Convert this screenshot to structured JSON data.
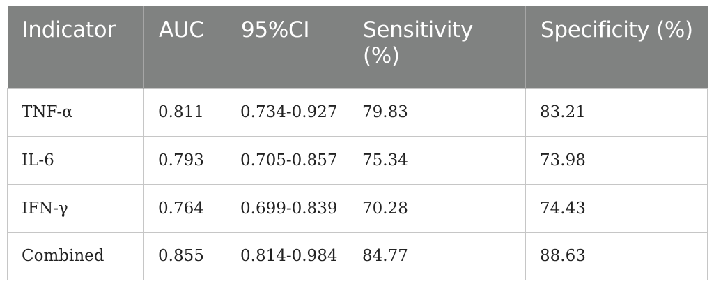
{
  "table": {
    "headers": [
      "Indicator",
      "AUC",
      "95%CI",
      "Sensitivity (%)",
      "Specificity (%)"
    ],
    "rows": [
      [
        "TNF-α",
        "0.811",
        "0.734-0.927",
        "79.83",
        "83.21"
      ],
      [
        "IL-6",
        "0.793",
        "0.705-0.857",
        "75.34",
        "73.98"
      ],
      [
        "IFN-γ",
        "0.764",
        "0.699-0.839",
        "70.28",
        "74.43"
      ],
      [
        "Combined",
        "0.855",
        "0.814-0.984",
        "84.77",
        "88.63"
      ]
    ]
  },
  "colors": {
    "header_background": "#808281",
    "header_text": "#ffffff",
    "grid_line": "#c6c6c6"
  }
}
